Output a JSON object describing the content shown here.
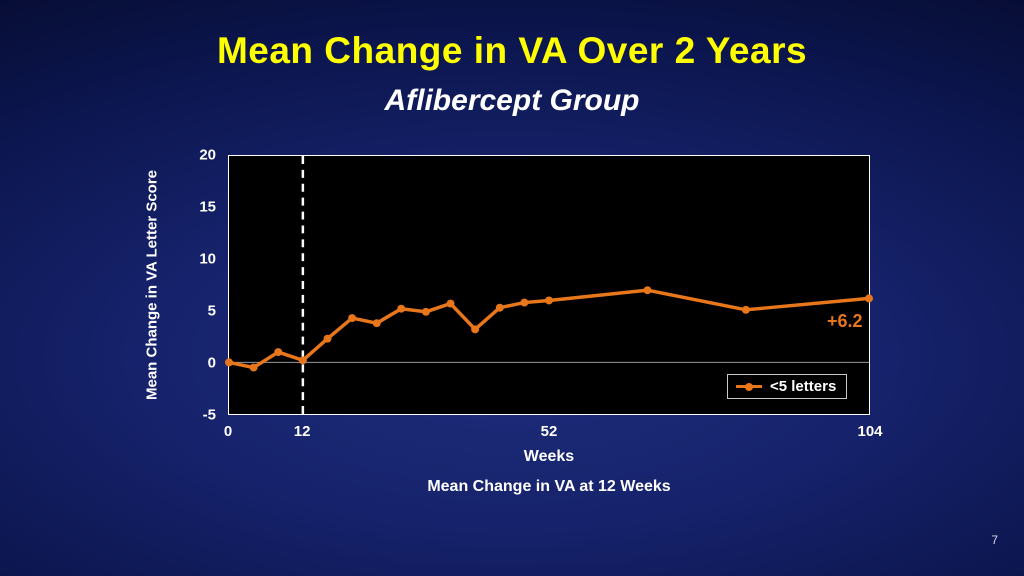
{
  "slide": {
    "title": "Mean Change in VA Over 2 Years",
    "subtitle": "Aflibercept Group",
    "caption": "Mean Change in VA at 12 Weeks",
    "page_number": "7"
  },
  "colors": {
    "accent_orange": "#e8761a",
    "title_yellow": "#ffff00",
    "plot_background": "#000000",
    "axis_text": "#ffffff"
  },
  "chart_data": {
    "type": "line",
    "title": "",
    "xlabel": "Weeks",
    "ylabel": "Mean Change in VA Letter Score",
    "xlim": [
      0,
      104
    ],
    "ylim": [
      -5,
      20
    ],
    "x_ticks": [
      0,
      12,
      52,
      104
    ],
    "y_ticks": [
      20,
      15,
      10,
      5,
      0,
      -5
    ],
    "grid": "zero-line-only",
    "reference_line_x": 12,
    "annotation": "+6.2",
    "legend_position": "inside-bottom-right",
    "legend": [
      {
        "label": "<5 letters",
        "color": "#e8761a"
      }
    ],
    "series": [
      {
        "name": "<5 letters",
        "color": "#e8761a",
        "x": [
          0,
          4,
          8,
          12,
          16,
          20,
          24,
          28,
          32,
          36,
          40,
          44,
          48,
          52,
          68,
          84,
          104
        ],
        "y": [
          0,
          -0.5,
          1.0,
          0.2,
          2.3,
          4.3,
          3.8,
          5.2,
          4.9,
          5.7,
          3.2,
          5.3,
          5.8,
          6.0,
          7.0,
          5.1,
          6.2
        ]
      }
    ]
  }
}
